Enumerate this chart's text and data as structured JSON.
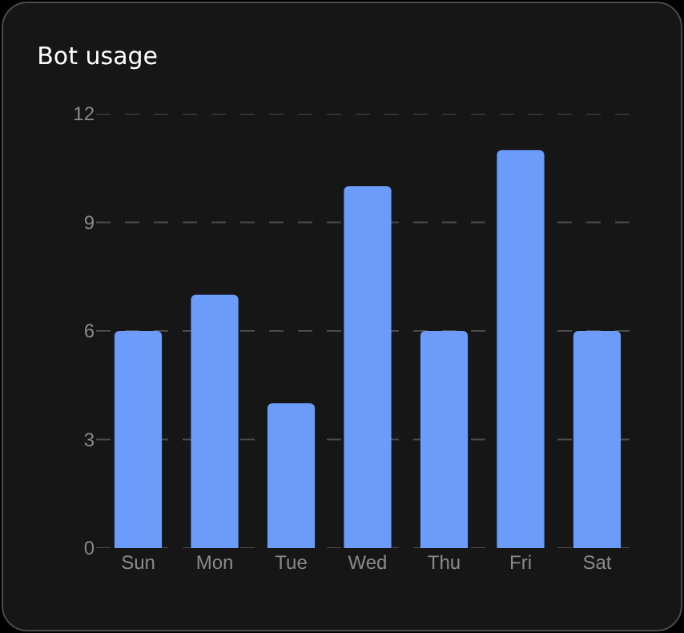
{
  "chart_data": {
    "type": "bar",
    "title": "Bot usage",
    "categories": [
      "Sun",
      "Mon",
      "Tue",
      "Wed",
      "Thu",
      "Fri",
      "Sat"
    ],
    "values": [
      6,
      7,
      4,
      10,
      6,
      11,
      6
    ],
    "color": "#6b9cfa",
    "ylim": [
      0,
      12
    ],
    "yticks": [
      0,
      3,
      6,
      9,
      12
    ],
    "grid": "y"
  }
}
